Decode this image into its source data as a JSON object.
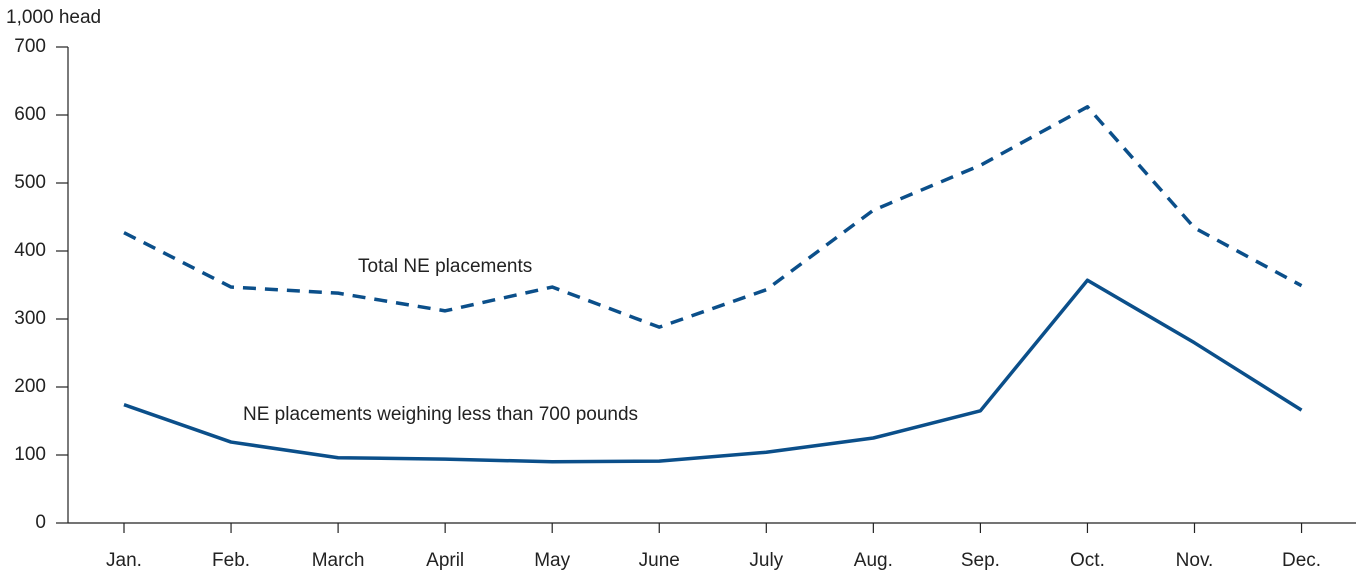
{
  "chart_data": {
    "type": "line",
    "y_label": "1,000 head",
    "categories": [
      "Jan.",
      "Feb.",
      "March",
      "April",
      "May",
      "June",
      "July",
      "Aug.",
      "Sep.",
      "Oct.",
      "Nov.",
      "Dec."
    ],
    "series": [
      {
        "name": "Total NE placements",
        "color": "#0b4f8a",
        "line_style": "dashed",
        "values": [
          427,
          347,
          338,
          312,
          347,
          288,
          343,
          460,
          526,
          612,
          434,
          349
        ]
      },
      {
        "name": "NE placements weighing less than 700 pounds",
        "color": "#0b4f8a",
        "line_style": "solid",
        "values": [
          174,
          119,
          96,
          94,
          90,
          91,
          104,
          125,
          165,
          357,
          265,
          166
        ]
      }
    ],
    "ylim": [
      0,
      700
    ],
    "yticks": [
      0,
      100,
      200,
      300,
      400,
      500,
      600,
      700
    ],
    "grid": false
  }
}
